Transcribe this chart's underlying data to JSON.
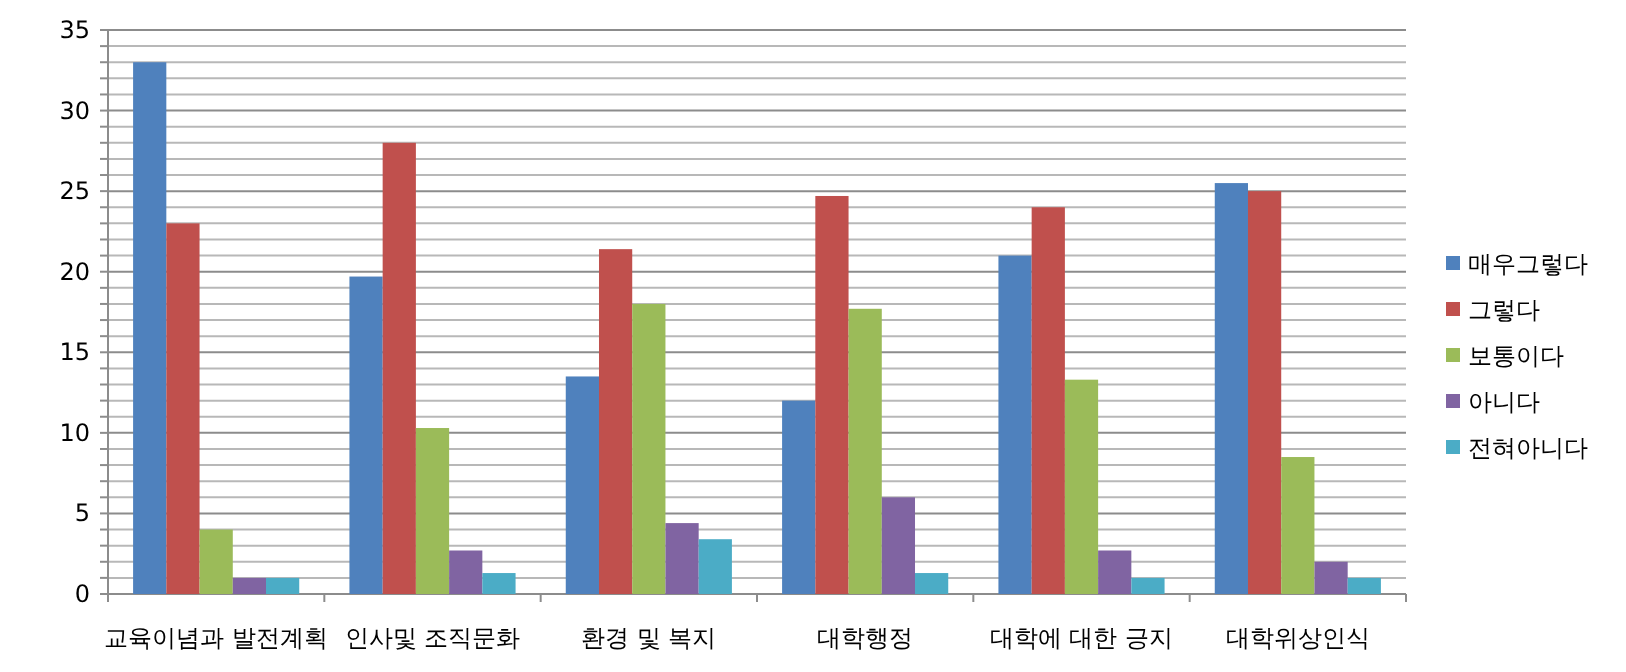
{
  "chart_data": {
    "type": "bar",
    "categories": [
      "교육이념과 발전계획",
      "인사및 조직문화",
      "환경 및 복지",
      "대학행정",
      "대학에 대한 긍지",
      "대학위상인식"
    ],
    "series": [
      {
        "name": "매우그렇다",
        "color": "#4f81bd",
        "values": [
          33,
          19.7,
          13.5,
          12,
          21,
          25.5
        ]
      },
      {
        "name": "그렇다",
        "color": "#c0504d",
        "values": [
          23,
          28,
          21.4,
          24.7,
          24,
          25
        ]
      },
      {
        "name": "보통이다",
        "color": "#9bbb59",
        "values": [
          4,
          10.3,
          18,
          17.7,
          13.3,
          8.5
        ]
      },
      {
        "name": "아니다",
        "color": "#8064a2",
        "values": [
          1,
          2.7,
          4.4,
          6,
          2.7,
          2
        ]
      },
      {
        "name": "전혀아니다",
        "color": "#4bacc6",
        "values": [
          1,
          1.3,
          3.4,
          1.3,
          1,
          1
        ]
      }
    ],
    "ylim": [
      0,
      35
    ],
    "yticks": [
      0,
      {
        "value": 1,
        "label": null
      },
      {
        "value": 2,
        "label": null
      },
      {
        "value": 3,
        "label": null
      },
      {
        "value": 4,
        "label": null
      },
      5,
      {
        "value": 6,
        "label": null
      },
      {
        "value": 7,
        "label": null
      },
      {
        "value": 8,
        "label": null
      },
      {
        "value": 9,
        "label": null
      },
      10,
      {
        "value": 11,
        "label": null
      },
      {
        "value": 12,
        "label": null
      },
      {
        "value": 13,
        "label": null
      },
      {
        "value": 14,
        "label": null
      },
      15,
      {
        "value": 16,
        "label": null
      },
      {
        "value": 17,
        "label": null
      },
      {
        "value": 18,
        "label": null
      },
      {
        "value": 19,
        "label": null
      },
      20,
      {
        "value": 21,
        "label": null
      },
      {
        "value": 22,
        "label": null
      },
      {
        "value": 23,
        "label": null
      },
      {
        "value": 24,
        "label": null
      },
      25,
      {
        "value": 26,
        "label": null
      },
      {
        "value": 27,
        "label": null
      },
      {
        "value": 28,
        "label": null
      },
      {
        "value": 29,
        "label": null
      },
      30,
      {
        "value": 31,
        "label": null
      },
      {
        "value": 32,
        "label": null
      },
      {
        "value": 33,
        "label": null
      },
      {
        "value": 34,
        "label": null
      },
      35
    ],
    "grid": "y",
    "legend": "right"
  }
}
